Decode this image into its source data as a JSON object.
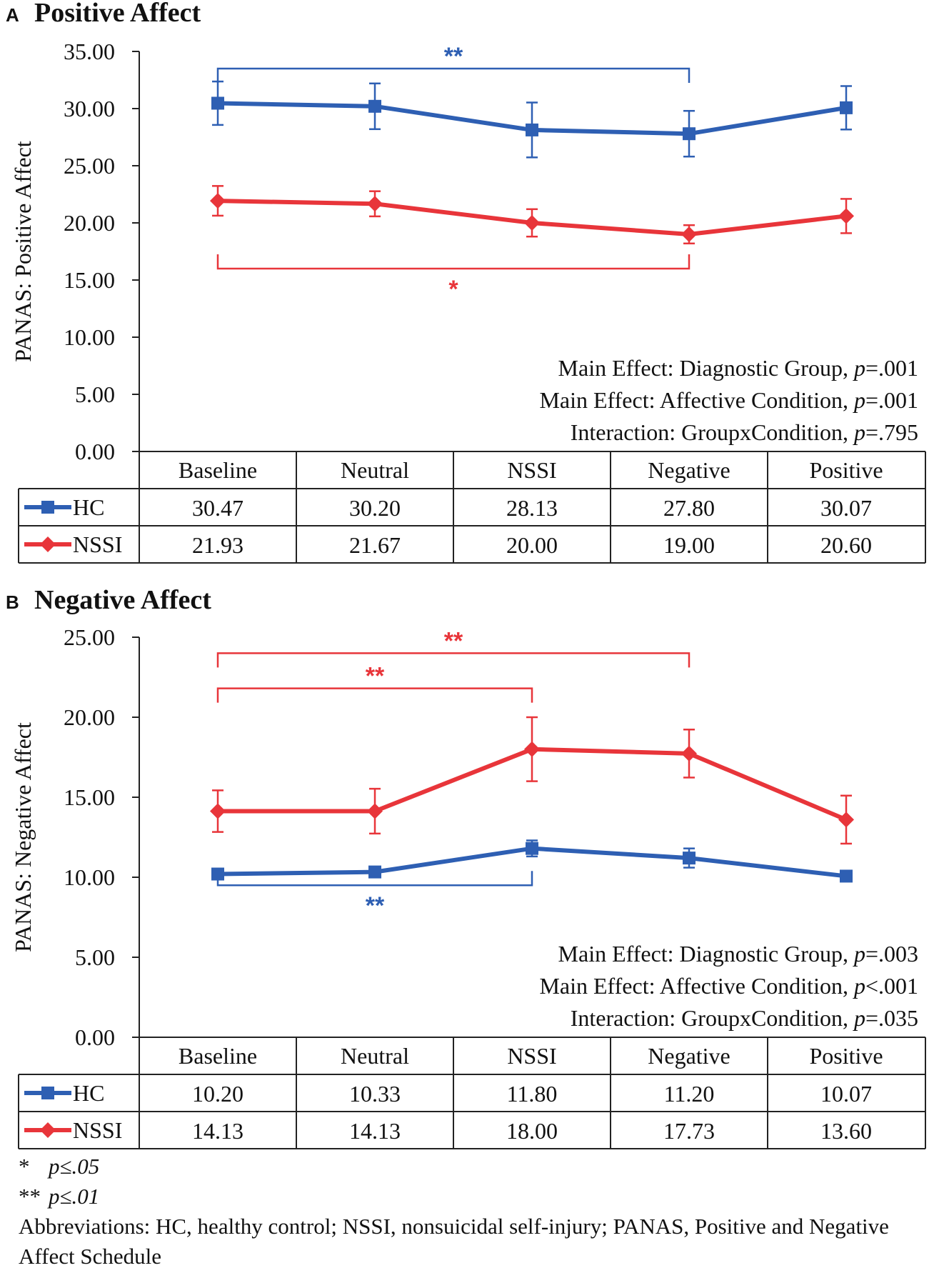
{
  "panels": [
    {
      "letter": "A",
      "title": "Positive Affect",
      "ylabel": "PANAS: Positive Affect",
      "ylim": [
        0,
        35
      ],
      "yticks": [
        "0.00",
        "5.00",
        "10.00",
        "15.00",
        "20.00",
        "25.00",
        "30.00",
        "35.00"
      ],
      "effects": [
        {
          "text": "Main Effect:  Diagnostic Group, ",
          "p": "p",
          "value": "=.001"
        },
        {
          "text": "Main Effect:  Affective Condition, ",
          "p": "p",
          "value": "=.001"
        },
        {
          "text": "Interaction:  GroupxCondition, ",
          "p": "p",
          "value": "=.795"
        }
      ],
      "brackets": [
        {
          "from": 0,
          "to": 3,
          "at": 33.5,
          "dir": "down",
          "color": "#2e5fb3",
          "stars": "**"
        },
        {
          "from": 0,
          "to": 3,
          "at": 16.0,
          "dir": "up",
          "color": "#e8353a",
          "stars": "*"
        }
      ]
    },
    {
      "letter": "B",
      "title": "Negative Affect",
      "ylabel": "PANAS: Negative Affect",
      "ylim": [
        0,
        25
      ],
      "yticks": [
        "0.00",
        "5.00",
        "10.00",
        "15.00",
        "20.00",
        "25.00"
      ],
      "effects": [
        {
          "text": "Main Effect:  Diagnostic Group, ",
          "p": "p",
          "value": "=.003"
        },
        {
          "text": "Main Effect:  Affective Condition, ",
          "p": "p",
          "value": "<.001"
        },
        {
          "text": "Interaction:  GroupxCondition, ",
          "p": "p",
          "value": "=.035"
        }
      ],
      "brackets": [
        {
          "from": 0,
          "to": 3,
          "at": 24.0,
          "dir": "down",
          "color": "#e8353a",
          "stars": "**"
        },
        {
          "from": 0,
          "to": 2,
          "at": 21.8,
          "dir": "down",
          "color": "#e8353a",
          "stars": "**"
        },
        {
          "from": 0,
          "to": 2,
          "at": 9.5,
          "dir": "up",
          "color": "#2e5fb3",
          "stars": "**"
        }
      ]
    }
  ],
  "chart_data": [
    {
      "type": "line",
      "title": "Positive Affect",
      "ylabel": "PANAS: Positive Affect",
      "ylim": [
        0,
        35
      ],
      "categories": [
        "Baseline",
        "Neutral",
        "NSSI",
        "Negative",
        "Positive"
      ],
      "series": [
        {
          "name": "HC",
          "color": "#2e5fb3",
          "marker": "square",
          "values": [
            30.47,
            30.2,
            28.13,
            27.8,
            30.07
          ],
          "labels": [
            "30.47",
            "30.20",
            "28.13",
            "27.80",
            "30.07"
          ],
          "error": [
            1.9,
            2.0,
            2.4,
            2.0,
            1.9
          ]
        },
        {
          "name": "NSSI",
          "color": "#e8353a",
          "marker": "diamond",
          "values": [
            21.93,
            21.67,
            20.0,
            19.0,
            20.6
          ],
          "labels": [
            "21.93",
            "21.67",
            "20.00",
            "19.00",
            "20.60"
          ],
          "error": [
            1.3,
            1.1,
            1.2,
            0.8,
            1.5
          ]
        }
      ]
    },
    {
      "type": "line",
      "title": "Negative Affect",
      "ylabel": "PANAS: Negative Affect",
      "ylim": [
        0,
        25
      ],
      "categories": [
        "Baseline",
        "Neutral",
        "NSSI",
        "Negative",
        "Positive"
      ],
      "series": [
        {
          "name": "HC",
          "color": "#2e5fb3",
          "marker": "square",
          "values": [
            10.2,
            10.33,
            11.8,
            11.2,
            10.07
          ],
          "labels": [
            "10.20",
            "10.33",
            "11.80",
            "11.20",
            "10.07"
          ],
          "error": [
            0.15,
            0.15,
            0.5,
            0.6,
            0.15
          ]
        },
        {
          "name": "NSSI",
          "color": "#e8353a",
          "marker": "diamond",
          "values": [
            14.13,
            14.13,
            18.0,
            17.73,
            13.6
          ],
          "labels": [
            "14.13",
            "14.13",
            "18.00",
            "17.73",
            "13.60"
          ],
          "error": [
            1.3,
            1.4,
            2.0,
            1.5,
            1.5
          ]
        }
      ]
    }
  ],
  "notes": {
    "star1": "*",
    "star1_text": "p≤.05",
    "star2": "**",
    "star2_text": "p≤.01",
    "abbreviations": "Abbreviations: HC, healthy control; NSSI, nonsuicidal self-injury; PANAS, Positive and Negative Affect Schedule"
  }
}
